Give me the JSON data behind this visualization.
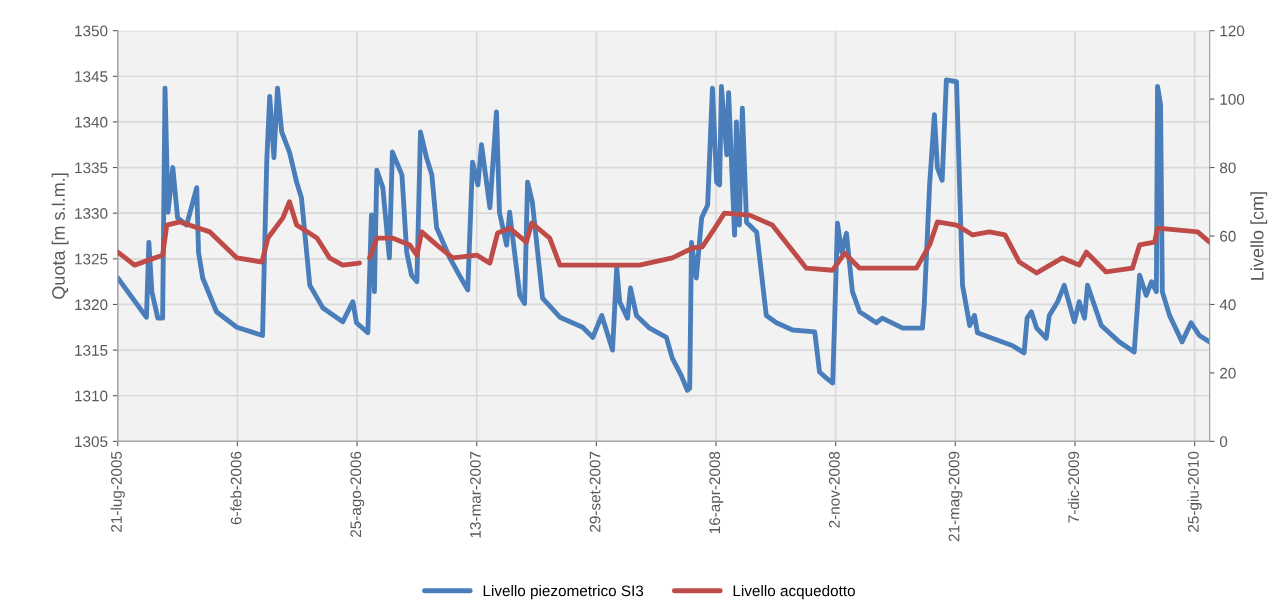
{
  "chart_data": {
    "type": "line",
    "xlabel": null,
    "ylabel": "Quota [m s.l.m.]",
    "y2label": "Livello [cm]",
    "xlim": [
      "2005-07-21",
      "2010-07-20"
    ],
    "xticks": [
      {
        "value": "2005-07-21",
        "label": "21-lug-2005"
      },
      {
        "value": "2006-02-06",
        "label": "6-feb-2006"
      },
      {
        "value": "2006-08-25",
        "label": "25-ago-2006"
      },
      {
        "value": "2007-03-13",
        "label": "13-mar-2007"
      },
      {
        "value": "2007-09-29",
        "label": "29-set-2007"
      },
      {
        "value": "2008-04-16",
        "label": "16-apr-2008"
      },
      {
        "value": "2008-11-02",
        "label": "2-nov-2008"
      },
      {
        "value": "2009-05-21",
        "label": "21-mag-2009"
      },
      {
        "value": "2009-12-07",
        "label": "7-dic-2009"
      },
      {
        "value": "2010-06-25",
        "label": "25-giu-2010"
      }
    ],
    "ylim": [
      1305,
      1350
    ],
    "yticks": [
      1305,
      1310,
      1315,
      1320,
      1325,
      1330,
      1335,
      1340,
      1345,
      1350
    ],
    "y2lim": [
      0,
      120
    ],
    "y2ticks": [
      0,
      20,
      40,
      60,
      80,
      100,
      120
    ],
    "grid": true,
    "legend": "bottom",
    "marker": "none",
    "line_style": "solid",
    "series": [
      {
        "name": "Livello piezometrico SI3",
        "color": "#4a7ebb",
        "x": [
          "2005-07-21",
          "2005-09-07",
          "2005-09-11",
          "2005-09-16",
          "2005-09-26",
          "2005-10-04",
          "2005-10-08",
          "2005-10-13",
          "2005-10-21",
          "2005-10-29",
          "2005-11-13",
          "2005-11-23",
          "2005-11-30",
          "2005-12-03",
          "2005-12-10",
          "2006-01-02",
          "2006-02-05",
          "2006-03-20",
          "2006-03-27",
          "2006-04-01",
          "2006-04-08",
          "2006-04-14",
          "2006-04-21",
          "2006-05-04",
          "2006-05-16",
          "2006-05-24",
          "2006-06-07",
          "2006-06-29",
          "2006-08-01",
          "2006-08-18",
          "2006-08-24",
          "2006-09-12",
          "2006-09-18",
          "2006-09-23",
          "2006-09-27",
          "2006-10-07",
          "2006-10-18",
          "2006-10-23",
          "2006-11-08",
          "2006-11-16",
          "2006-11-24",
          "2006-12-03",
          "2006-12-09",
          "2006-12-19",
          "2006-12-28",
          "2007-01-05",
          "2007-01-27",
          "2007-02-12",
          "2007-02-26",
          "2007-03-06",
          "2007-03-15",
          "2007-03-21",
          "2007-04-04",
          "2007-04-15",
          "2007-04-20",
          "2007-05-02",
          "2007-05-07",
          "2007-05-24",
          "2007-06-01",
          "2007-06-06",
          "2007-06-14",
          "2007-07-01",
          "2007-07-30",
          "2007-09-06",
          "2007-09-23",
          "2007-10-08",
          "2007-10-26",
          "2007-11-02",
          "2007-11-07",
          "2007-11-20",
          "2007-11-25",
          "2007-12-05",
          "2007-12-27",
          "2008-01-24",
          "2008-02-03",
          "2008-02-18",
          "2008-02-28",
          "2008-03-03",
          "2008-03-06",
          "2008-03-14",
          "2008-03-23",
          "2008-04-02",
          "2008-04-10",
          "2008-04-17",
          "2008-04-22",
          "2008-04-25",
          "2008-05-04",
          "2008-05-07",
          "2008-05-17",
          "2008-05-20",
          "2008-05-25",
          "2008-05-30",
          "2008-06-06",
          "2008-06-23",
          "2008-07-09",
          "2008-07-26",
          "2008-08-22",
          "2008-09-28",
          "2008-10-06",
          "2008-10-18",
          "2008-10-28",
          "2008-10-31",
          "2008-11-05",
          "2008-11-12",
          "2008-11-20",
          "2008-11-30",
          "2008-12-12",
          "2009-01-09",
          "2009-01-19",
          "2009-02-22",
          "2009-03-27",
          "2009-03-30",
          "2009-04-08",
          "2009-04-16",
          "2009-04-21",
          "2009-04-29",
          "2009-05-06",
          "2009-05-23",
          "2009-06-02",
          "2009-06-14",
          "2009-06-22",
          "2009-06-27",
          "2009-07-17",
          "2009-08-24",
          "2009-09-13",
          "2009-09-18",
          "2009-09-25",
          "2009-10-04",
          "2009-10-20",
          "2009-10-25",
          "2009-11-08",
          "2009-11-19",
          "2009-12-06",
          "2009-12-14",
          "2009-12-23",
          "2009-12-28",
          "2010-01-20",
          "2010-02-19",
          "2010-03-16",
          "2010-03-25",
          "2010-04-05",
          "2010-04-14",
          "2010-04-22",
          "2010-04-24",
          "2010-04-29",
          "2010-05-02",
          "2010-05-14",
          "2010-06-04",
          "2010-06-19",
          "2010-07-03",
          "2010-07-20"
        ],
        "values": [
          1322.9,
          1318.6,
          1326.8,
          1321.4,
          1318.5,
          1318.5,
          1343.7,
          1330.1,
          1335.0,
          1329.5,
          1328.7,
          1331.1,
          1332.8,
          1325.7,
          1322.9,
          1319.2,
          1317.5,
          1316.6,
          1335.6,
          1342.8,
          1336.1,
          1343.7,
          1338.9,
          1336.7,
          1333.4,
          1331.7,
          1322.1,
          1319.6,
          1318.1,
          1320.3,
          1318.0,
          1316.9,
          1329.8,
          1321.4,
          1334.7,
          1332.8,
          1325.1,
          1336.7,
          1334.2,
          1325.7,
          1323.2,
          1322.5,
          1338.9,
          1336.1,
          1334.2,
          1328.4,
          1325.1,
          1323.2,
          1321.6,
          1335.6,
          1333.1,
          1337.5,
          1330.6,
          1341.1,
          1330.1,
          1326.5,
          1330.1,
          1321.0,
          1320.1,
          1333.4,
          1331.2,
          1320.7,
          1318.6,
          1317.5,
          1316.4,
          1318.8,
          1315.0,
          1324.0,
          1320.3,
          1318.5,
          1321.8,
          1318.8,
          1317.4,
          1316.4,
          1314.1,
          1312.2,
          1310.6,
          1310.8,
          1326.8,
          1322.9,
          1329.5,
          1330.9,
          1343.7,
          1333.4,
          1333.1,
          1343.9,
          1336.4,
          1343.2,
          1327.6,
          1340.0,
          1328.7,
          1341.5,
          1329.0,
          1327.9,
          1318.8,
          1318.0,
          1317.2,
          1317.0,
          1312.6,
          1311.9,
          1311.4,
          1317.7,
          1328.9,
          1325.7,
          1327.8,
          1321.4,
          1319.2,
          1318.0,
          1318.5,
          1317.4,
          1317.4,
          1319.9,
          1333.1,
          1340.8,
          1335.0,
          1333.6,
          1344.6,
          1344.4,
          1322.1,
          1317.7,
          1318.8,
          1316.9,
          1316.4,
          1315.5,
          1314.7,
          1318.5,
          1319.2,
          1317.4,
          1316.3,
          1318.8,
          1320.3,
          1322.1,
          1318.1,
          1320.3,
          1318.5,
          1322.1,
          1317.7,
          1315.9,
          1314.8,
          1323.2,
          1321.0,
          1322.5,
          1321.4,
          1343.9,
          1341.9,
          1321.4,
          1318.8,
          1315.9,
          1318.0,
          1316.6,
          1315.9
        ]
      },
      {
        "name": "Livello acquedotto",
        "color": "#be4b48",
        "axis": "y2",
        "x": [
          "2005-07-21",
          "2005-08-18",
          "2005-10-04",
          "2005-10-11",
          "2005-11-02",
          "2005-12-22",
          "2006-02-05",
          "2006-03-19",
          "2006-03-29",
          "2006-04-23",
          "2006-05-04",
          "2006-05-16",
          "2006-06-19",
          "2006-07-10",
          "2006-08-01",
          "2006-08-29",
          "2006-09-04",
          "2006-09-15",
          "2006-09-27",
          "2006-10-23",
          "2006-11-21",
          "2006-12-03",
          "2006-12-11",
          "2007-01-05",
          "2007-02-01",
          "2007-03-13",
          "2007-04-04",
          "2007-04-17",
          "2007-05-07",
          "2007-06-04",
          "2007-06-13",
          "2007-07-13",
          "2007-07-30",
          "2007-10-04",
          "2007-12-10",
          "2008-02-03",
          "2008-03-08",
          "2008-03-24",
          "2008-04-14",
          "2008-04-30",
          "2008-06-11",
          "2008-07-19",
          "2008-08-17",
          "2008-09-14",
          "2008-10-28",
          "2008-11-17",
          "2008-12-12",
          "2009-01-31",
          "2009-03-17",
          "2009-04-08",
          "2009-04-21",
          "2009-05-23",
          "2009-06-19",
          "2009-07-17",
          "2009-08-12",
          "2009-09-05",
          "2009-10-04",
          "2009-11-16",
          "2009-12-14",
          "2009-12-26",
          "2010-01-28",
          "2010-03-13",
          "2010-03-25",
          "2010-04-19",
          "2010-04-24",
          "2010-05-30",
          "2010-06-30",
          "2010-07-20"
        ],
        "values": [
          55.3,
          51.5,
          54.4,
          63.2,
          64.1,
          61.2,
          53.6,
          52.4,
          59.4,
          65.3,
          70.0,
          63.2,
          59.4,
          53.6,
          51.5,
          52.1,
          null,
          53.6,
          59.4,
          59.4,
          57.4,
          54.4,
          61.2,
          57.4,
          53.6,
          54.4,
          52.1,
          60.9,
          62.3,
          58.2,
          63.8,
          59.4,
          51.5,
          51.5,
          51.5,
          53.6,
          56.5,
          56.8,
          62.3,
          66.7,
          66.1,
          63.2,
          56.8,
          50.6,
          50.0,
          55.0,
          50.6,
          50.6,
          50.6,
          57.4,
          64.1,
          63.2,
          60.3,
          61.2,
          60.3,
          52.4,
          49.2,
          53.6,
          51.5,
          55.3,
          49.5,
          50.6,
          57.4,
          58.2,
          62.3,
          61.7,
          61.2,
          58.2
        ]
      }
    ]
  }
}
